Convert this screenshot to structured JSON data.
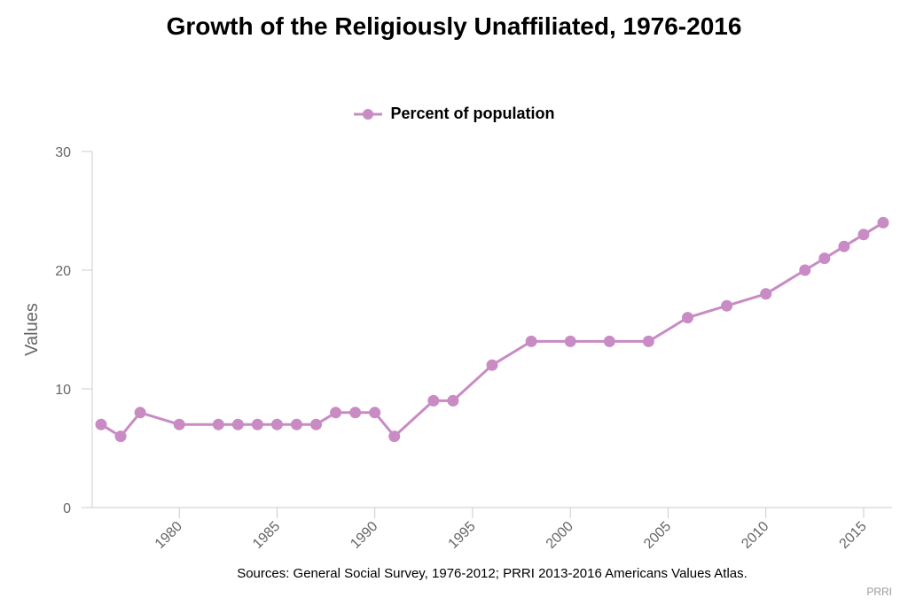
{
  "title": "Growth of the Religiously Unaffiliated, 1976-2016",
  "legend": {
    "label": "Percent of population"
  },
  "source": "Sources: General Social Survey, 1976-2012; PRRI 2013-2016 Americans Values Atlas.",
  "credit": "PRRI",
  "colors": {
    "series": "#c98bc3",
    "axis": "#cccccc",
    "tick_text": "#666666"
  },
  "chart_data": {
    "type": "line",
    "title": "Growth of the Religiously Unaffiliated, 1976-2016",
    "ylabel": "Values",
    "xlabel": "",
    "xlim": [
      1976,
      2016
    ],
    "ylim": [
      0,
      30
    ],
    "xticks": [
      "1980",
      "1985",
      "1990",
      "1995",
      "2000",
      "2005",
      "2010",
      "2015"
    ],
    "yticks": [
      "0",
      "10",
      "20",
      "30"
    ],
    "grid": false,
    "legend_position": "top-center",
    "series": [
      {
        "name": "Percent of population",
        "x": [
          1976,
          1977,
          1978,
          1980,
          1982,
          1983,
          1984,
          1985,
          1986,
          1987,
          1988,
          1989,
          1990,
          1991,
          1993,
          1994,
          1996,
          1998,
          2000,
          2002,
          2004,
          2006,
          2008,
          2010,
          2012,
          2013,
          2014,
          2015,
          2016
        ],
        "values": [
          7,
          6,
          8,
          7,
          7,
          7,
          7,
          7,
          7,
          7,
          8,
          8,
          8,
          6,
          9,
          9,
          12,
          14,
          14,
          14,
          14,
          16,
          17,
          18,
          20,
          21,
          22,
          23,
          24
        ]
      }
    ]
  }
}
